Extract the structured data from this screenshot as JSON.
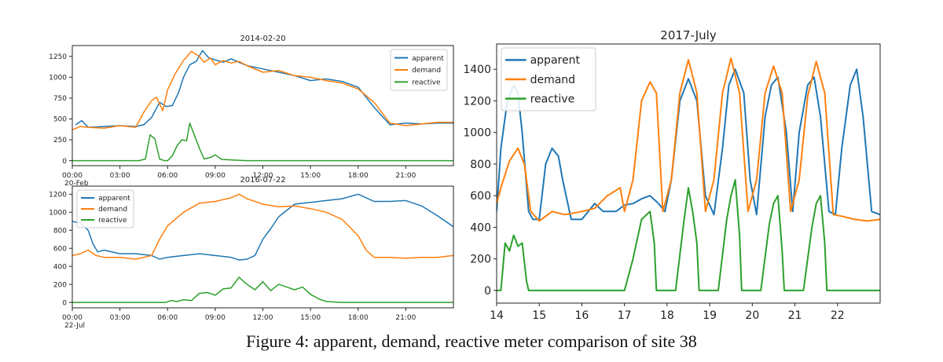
{
  "caption": "Figure 4: apparent, demand, reactive meter comparison of site 38",
  "colors": {
    "apparent": "#1f77b4",
    "demand": "#ff7f0e",
    "reactive": "#2ca02c"
  },
  "chart_data": [
    {
      "type": "line",
      "title": "2014-02-20",
      "xlabel": "",
      "ylabel": "",
      "xlim": [
        0,
        24
      ],
      "ylim": [
        -60,
        1380
      ],
      "xticks": [
        0,
        3,
        6,
        9,
        12,
        15,
        18,
        21
      ],
      "xticklabels": [
        "00:00",
        "03:00",
        "06:00",
        "09:00",
        "12:00",
        "15:00",
        "18:00",
        "21:00"
      ],
      "xticklabel_sub": "20-Feb",
      "yticks": [
        0,
        250,
        500,
        750,
        1000,
        1250
      ],
      "legend": "top-right",
      "grid": false,
      "series": [
        {
          "name": "apparent",
          "x": [
            0.2,
            0.6,
            1,
            2,
            3,
            4,
            4.5,
            5,
            5.5,
            5.9,
            6.3,
            6.7,
            7,
            7.4,
            7.8,
            8.2,
            8.6,
            9,
            9.5,
            10,
            10.5,
            11,
            12,
            13,
            14,
            15,
            16,
            17,
            18,
            19,
            20,
            21,
            22,
            23,
            24
          ],
          "y": [
            430,
            480,
            400,
            410,
            420,
            410,
            430,
            520,
            700,
            650,
            660,
            820,
            1000,
            1150,
            1190,
            1320,
            1230,
            1210,
            1180,
            1220,
            1180,
            1140,
            1100,
            1060,
            1020,
            960,
            980,
            950,
            880,
            640,
            430,
            450,
            440,
            450,
            450
          ]
        },
        {
          "name": "demand",
          "x": [
            0,
            0.5,
            1,
            2,
            3,
            4,
            4.5,
            5,
            5.3,
            5.7,
            6,
            6.5,
            7,
            7.5,
            8,
            8.3,
            8.7,
            9,
            9.5,
            10,
            10.5,
            11,
            12,
            13,
            14,
            15,
            16,
            17,
            18,
            19,
            20,
            21,
            22,
            23,
            24
          ],
          "y": [
            370,
            410,
            400,
            390,
            420,
            400,
            580,
            720,
            760,
            600,
            850,
            1050,
            1200,
            1310,
            1250,
            1180,
            1230,
            1150,
            1200,
            1170,
            1190,
            1140,
            1060,
            1080,
            1020,
            1000,
            960,
            930,
            860,
            700,
            450,
            420,
            440,
            460,
            460
          ]
        },
        {
          "name": "reactive",
          "x": [
            0,
            4.2,
            4.6,
            4.9,
            5.2,
            5.5,
            5.8,
            6,
            6.3,
            6.6,
            6.9,
            7.2,
            7.4,
            7.7,
            8,
            8.3,
            8.7,
            9,
            9.4,
            10,
            11,
            12,
            24
          ],
          "y": [
            0,
            0,
            20,
            310,
            260,
            20,
            0,
            0,
            60,
            180,
            250,
            240,
            450,
            300,
            150,
            20,
            40,
            70,
            15,
            10,
            0,
            0,
            0
          ]
        }
      ]
    },
    {
      "type": "line",
      "title": "2016-07-22",
      "xlabel": "",
      "ylabel": "",
      "xlim": [
        0,
        24
      ],
      "ylim": [
        -60,
        1290
      ],
      "xticks": [
        0,
        3,
        6,
        9,
        12,
        15,
        18,
        21
      ],
      "xticklabels": [
        "00:00",
        "03:00",
        "06:00",
        "09:00",
        "12:00",
        "15:00",
        "18:00",
        "21:00"
      ],
      "xticklabel_sub": "22-Jul",
      "yticks": [
        0,
        200,
        400,
        600,
        800,
        1000,
        1200
      ],
      "legend": "top-left",
      "grid": false,
      "series": [
        {
          "name": "apparent",
          "x": [
            0,
            0.5,
            1,
            1.3,
            1.6,
            2,
            3,
            4,
            5,
            5.5,
            6,
            7,
            8,
            9,
            10,
            10.5,
            11,
            11.5,
            12,
            12.5,
            13,
            14,
            15,
            16,
            17,
            18,
            19,
            20,
            21,
            22,
            23,
            24
          ],
          "y": [
            900,
            880,
            800,
            650,
            560,
            580,
            540,
            540,
            520,
            480,
            500,
            520,
            540,
            520,
            500,
            470,
            480,
            520,
            700,
            820,
            950,
            1090,
            1110,
            1130,
            1150,
            1200,
            1120,
            1120,
            1130,
            1070,
            960,
            840
          ]
        },
        {
          "name": "demand",
          "x": [
            0,
            0.5,
            1,
            1.5,
            2,
            3,
            4,
            4.5,
            5,
            5.5,
            6,
            7,
            8,
            9,
            10,
            10.5,
            11,
            12,
            13,
            14,
            15,
            16,
            17,
            18,
            18.5,
            19,
            20,
            21,
            22,
            23,
            24
          ],
          "y": [
            520,
            540,
            580,
            520,
            500,
            500,
            480,
            500,
            520,
            700,
            850,
            1000,
            1100,
            1120,
            1160,
            1200,
            1150,
            1090,
            1060,
            1070,
            1040,
            1000,
            920,
            740,
            580,
            500,
            500,
            490,
            500,
            500,
            520
          ]
        },
        {
          "name": "reactive",
          "x": [
            0,
            5.9,
            6.2,
            6.6,
            7,
            7.5,
            8,
            8.5,
            9,
            9.5,
            10,
            10.5,
            11,
            11.5,
            12,
            12.5,
            13,
            13.5,
            14,
            14.5,
            15,
            15.5,
            16,
            17,
            24
          ],
          "y": [
            0,
            0,
            20,
            10,
            30,
            20,
            100,
            110,
            80,
            150,
            160,
            280,
            200,
            140,
            230,
            130,
            200,
            170,
            140,
            170,
            90,
            40,
            10,
            0,
            0
          ]
        }
      ]
    },
    {
      "type": "line",
      "title": "2017-July",
      "xlabel": "",
      "ylabel": "",
      "xlim": [
        14,
        23
      ],
      "ylim": [
        -80,
        1560
      ],
      "xticks": [
        14,
        15,
        16,
        17,
        18,
        19,
        20,
        21,
        22
      ],
      "xticklabels": [
        "14",
        "15",
        "16",
        "17",
        "18",
        "19",
        "20",
        "21",
        "22"
      ],
      "yticks": [
        0,
        200,
        400,
        600,
        800,
        1000,
        1200,
        1400
      ],
      "legend": "top-left",
      "grid": false,
      "series": [
        {
          "name": "apparent",
          "x": [
            14,
            14.1,
            14.25,
            14.4,
            14.5,
            14.6,
            14.75,
            14.85,
            15,
            15.15,
            15.3,
            15.45,
            15.55,
            15.75,
            16,
            16.3,
            16.5,
            16.8,
            17,
            17.2,
            17.4,
            17.6,
            17.8,
            17.95,
            18.1,
            18.3,
            18.5,
            18.7,
            18.9,
            19.1,
            19.3,
            19.45,
            19.6,
            19.8,
            19.95,
            20.1,
            20.3,
            20.45,
            20.6,
            20.8,
            20.95,
            21.1,
            21.3,
            21.45,
            21.6,
            21.8,
            21.95,
            22.1,
            22.3,
            22.45,
            22.6,
            22.8,
            23
          ],
          "y": [
            500,
            900,
            1200,
            1300,
            1250,
            1000,
            500,
            450,
            450,
            800,
            900,
            850,
            700,
            450,
            450,
            550,
            500,
            500,
            540,
            550,
            580,
            600,
            550,
            500,
            700,
            1200,
            1340,
            1200,
            600,
            480,
            900,
            1300,
            1400,
            1250,
            700,
            480,
            1100,
            1300,
            1350,
            1000,
            500,
            1000,
            1300,
            1350,
            1100,
            500,
            480,
            900,
            1300,
            1400,
            1100,
            500,
            480
          ]
        },
        {
          "name": "demand",
          "x": [
            14,
            14.1,
            14.3,
            14.5,
            14.65,
            14.8,
            15,
            15.3,
            15.6,
            16,
            16.3,
            16.6,
            16.9,
            17,
            17.2,
            17.4,
            17.6,
            17.75,
            17.9,
            18.1,
            18.3,
            18.5,
            18.7,
            18.9,
            19.1,
            19.3,
            19.5,
            19.7,
            19.9,
            20.1,
            20.3,
            20.5,
            20.7,
            20.9,
            21.1,
            21.3,
            21.5,
            21.7,
            21.9,
            22.1,
            22.4,
            22.7,
            23
          ],
          "y": [
            550,
            650,
            820,
            900,
            800,
            500,
            440,
            500,
            480,
            500,
            520,
            600,
            650,
            500,
            700,
            1200,
            1320,
            1250,
            500,
            700,
            1250,
            1460,
            1250,
            500,
            700,
            1250,
            1470,
            1250,
            500,
            700,
            1250,
            1420,
            1250,
            500,
            700,
            1230,
            1450,
            1250,
            480,
            470,
            450,
            440,
            450
          ]
        },
        {
          "name": "reactive",
          "x": [
            14,
            14.1,
            14.2,
            14.3,
            14.4,
            14.5,
            14.6,
            14.7,
            14.75,
            17,
            17.2,
            17.4,
            17.6,
            17.7,
            17.75,
            18.2,
            18.4,
            18.5,
            18.6,
            18.7,
            18.75,
            19.2,
            19.4,
            19.5,
            19.6,
            19.7,
            19.75,
            20.2,
            20.4,
            20.5,
            20.6,
            20.7,
            20.75,
            21.2,
            21.4,
            21.5,
            21.6,
            21.7,
            21.75,
            23
          ],
          "y": [
            0,
            0,
            300,
            250,
            350,
            280,
            300,
            60,
            0,
            0,
            200,
            450,
            500,
            300,
            0,
            0,
            450,
            650,
            500,
            300,
            0,
            0,
            450,
            600,
            700,
            350,
            0,
            0,
            420,
            550,
            600,
            250,
            0,
            0,
            400,
            550,
            600,
            300,
            0,
            0
          ]
        }
      ]
    }
  ]
}
